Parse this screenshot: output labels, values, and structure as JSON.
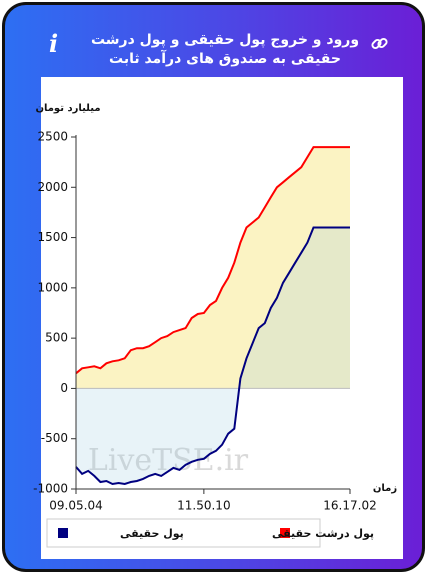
{
  "chart_data": {
    "type": "line",
    "title": "ورود و خروج پول حقیقی و پول درشت حقیقی به صندوق های درآمد ثابت",
    "y_label": "میلیارد تومان",
    "x_label": "زمان",
    "watermark": "LiveTSE.ir",
    "categories": [
      "09.05.04",
      null,
      null,
      null,
      null,
      null,
      null,
      null,
      null,
      null,
      null,
      null,
      null,
      null,
      null,
      null,
      null,
      null,
      null,
      null,
      null,
      "11.50.10",
      null,
      null,
      null,
      null,
      null,
      null,
      null,
      null,
      null,
      null,
      null,
      null,
      null,
      null,
      null,
      null,
      null,
      null,
      null,
      null,
      null,
      null,
      null,
      "16.17.02"
    ],
    "series": [
      {
        "name": "پول درشت حقیقی",
        "color": "#ff0000",
        "area_color": "#fbf3c3",
        "values": [
          150,
          200,
          210,
          220,
          200,
          250,
          270,
          280,
          300,
          380,
          400,
          400,
          420,
          460,
          500,
          520,
          560,
          580,
          600,
          700,
          740,
          750,
          830,
          870,
          1000,
          1100,
          1250,
          1450,
          1600,
          1650,
          1700,
          1800,
          1900,
          2000,
          2050,
          2100,
          2150,
          2200,
          2300,
          2400,
          2400,
          2400,
          2400,
          2400,
          2400,
          2400
        ]
      },
      {
        "name": "پول حقیقی",
        "color": "#000080",
        "area_color": "rgba(150,200,225,0.22)",
        "values": [
          -780,
          -850,
          -820,
          -870,
          -930,
          -920,
          -950,
          -940,
          -950,
          -930,
          -920,
          -900,
          -870,
          -850,
          -870,
          -830,
          -790,
          -810,
          -760,
          -730,
          -710,
          -700,
          -650,
          -620,
          -560,
          -450,
          -400,
          100,
          300,
          450,
          600,
          650,
          800,
          900,
          1050,
          1150,
          1250,
          1350,
          1450,
          1600,
          1600,
          1600,
          1600,
          1600,
          1600,
          1600
        ]
      }
    ],
    "ylim": [
      -1000,
      2500
    ],
    "yticks": [
      -1000,
      -500,
      0,
      500,
      1000,
      1500,
      2000,
      2500
    ],
    "grid": false,
    "legend": "bottom"
  }
}
